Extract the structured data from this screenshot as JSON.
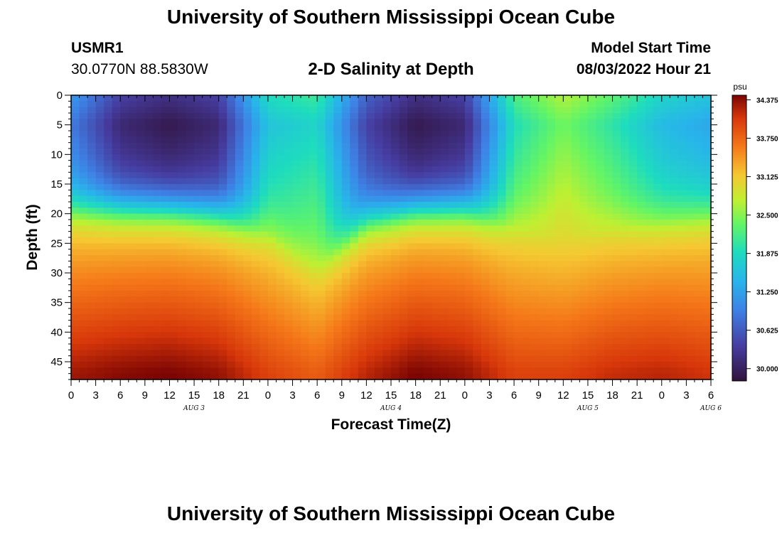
{
  "header": {
    "title": "University of Southern Mississippi Ocean Cube",
    "station_id": "USMR1",
    "station_coords": "30.0770N  88.5830W",
    "subtitle": "2-D Salinity at Depth",
    "start_label": "Model Start Time",
    "start_value": "08/03/2022 Hour 21"
  },
  "footer": {
    "title": "University of Southern Mississippi Ocean Cube"
  },
  "chart_data": {
    "type": "heatmap",
    "xlabel": "Forecast Time(Z)",
    "ylabel": "Depth (ft)",
    "x_tick_labels": [
      "0",
      "3",
      "6",
      "9",
      "12",
      "15",
      "18",
      "21",
      "0",
      "3",
      "6",
      "9",
      "12",
      "15",
      "18",
      "21",
      "0",
      "3",
      "6",
      "9",
      "12",
      "15",
      "18",
      "21",
      "0",
      "3",
      "6"
    ],
    "x_range_hours": [
      0,
      78
    ],
    "day_labels": [
      {
        "label": "AUG 3",
        "hour": 15
      },
      {
        "label": "AUG 4",
        "hour": 39
      },
      {
        "label": "AUG 5",
        "hour": 63
      },
      {
        "label": "AUG 6",
        "hour": 78
      }
    ],
    "y_ticks": [
      0,
      5,
      10,
      15,
      20,
      25,
      30,
      35,
      40,
      45
    ],
    "ylim": [
      48,
      0
    ],
    "y_inverted": true,
    "colorbar": {
      "unit": "psu",
      "range": [
        29.8,
        34.45
      ],
      "tick_labels": [
        "34.375",
        "33.750",
        "33.125",
        "32.500",
        "31.875",
        "31.250",
        "30.625",
        "30.000"
      ],
      "tick_values": [
        34.375,
        33.75,
        33.125,
        32.5,
        31.875,
        31.25,
        30.625,
        30.0
      ]
    },
    "surface_profile_hours": [
      0,
      6,
      12,
      18,
      24,
      30,
      36,
      42,
      48,
      54,
      60,
      66,
      72,
      78
    ],
    "surface_salinity_at_5ft": [
      30.9,
      30.1,
      29.9,
      30.1,
      31.6,
      31.8,
      30.4,
      29.9,
      30.1,
      31.9,
      32.4,
      32.0,
      31.5,
      31.3
    ],
    "halocline_depth_ft": [
      19,
      19,
      19,
      20,
      23,
      29,
      21,
      19,
      19,
      22,
      24,
      22,
      21,
      20
    ],
    "bottom_salinity": [
      34.3,
      34.4,
      34.45,
      34.35,
      34.0,
      33.8,
      34.2,
      34.45,
      34.35,
      34.0,
      34.0,
      34.15,
      34.2,
      34.1
    ]
  }
}
